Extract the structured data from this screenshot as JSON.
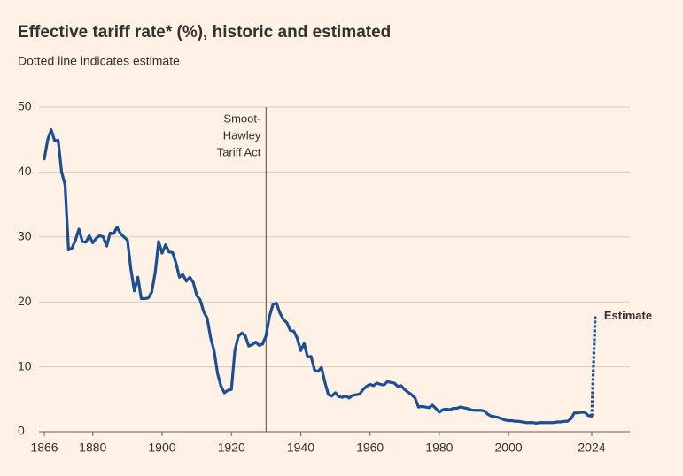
{
  "chart_data": {
    "type": "line",
    "title": "Effective tariff rate* (%), historic and estimated",
    "subtitle": "Dotted line indicates estimate",
    "xlim": [
      1866,
      2035
    ],
    "xticks": [
      1866,
      1880,
      1900,
      1920,
      1940,
      1960,
      1980,
      2000,
      2024
    ],
    "ylim": [
      0,
      50
    ],
    "yticks": [
      0,
      10,
      20,
      30,
      40,
      50
    ],
    "grid": true,
    "annotations": [
      {
        "x": 1930,
        "text": [
          "Smoot-",
          "Hawley",
          "Tariff Act"
        ]
      }
    ],
    "series": [
      {
        "color": "#1c4f8f",
        "style": "solid",
        "x": [
          1866,
          1867,
          1868,
          1869,
          1870,
          1871,
          1872,
          1873,
          1874,
          1875,
          1876,
          1877,
          1878,
          1879,
          1880,
          1881,
          1882,
          1883,
          1884,
          1885,
          1886,
          1887,
          1888,
          1889,
          1890,
          1891,
          1892,
          1893,
          1894,
          1895,
          1896,
          1897,
          1898,
          1899,
          1900,
          1901,
          1902,
          1903,
          1904,
          1905,
          1906,
          1907,
          1908,
          1909,
          1910,
          1911,
          1912,
          1913,
          1914,
          1915,
          1916,
          1917,
          1918,
          1919,
          1920,
          1921,
          1922,
          1923,
          1924,
          1925,
          1926,
          1927,
          1928,
          1929,
          1930,
          1931,
          1932,
          1933,
          1934,
          1935,
          1936,
          1937,
          1938,
          1939,
          1940,
          1941,
          1942,
          1943,
          1944,
          1945,
          1946,
          1947,
          1948,
          1949,
          1950,
          1951,
          1952,
          1953,
          1954,
          1955,
          1956,
          1957,
          1958,
          1959,
          1960,
          1961,
          1962,
          1963,
          1964,
          1965,
          1966,
          1967,
          1968,
          1969,
          1970,
          1971,
          1972,
          1973,
          1974,
          1975,
          1976,
          1977,
          1978,
          1979,
          1980,
          1981,
          1982,
          1983,
          1984,
          1985,
          1986,
          1987,
          1988,
          1989,
          1990,
          1991,
          1992,
          1993,
          1994,
          1995,
          1996,
          1997,
          1998,
          1999,
          2000,
          2001,
          2002,
          2003,
          2004,
          2005,
          2006,
          2007,
          2008,
          2009,
          2010,
          2011,
          2012,
          2013,
          2014,
          2015,
          2016,
          2017,
          2018,
          2019,
          2020,
          2021,
          2022,
          2023,
          2024
        ],
        "values": [
          42,
          45,
          46.5,
          44.8,
          44.9,
          40,
          38,
          28,
          28.3,
          29.5,
          31.2,
          29.3,
          29.2,
          30.2,
          29.1,
          29.8,
          30.2,
          30,
          28.6,
          30.6,
          30.5,
          31.5,
          30.5,
          30,
          29.5,
          25,
          21.7,
          23.8,
          20.5,
          20.5,
          20.6,
          21.5,
          24.5,
          29.3,
          27.5,
          28.8,
          27.7,
          27.6,
          26,
          23.8,
          24.2,
          23.2,
          23.8,
          23,
          21,
          20.3,
          18.5,
          17.5,
          14.5,
          12.5,
          9,
          7,
          6,
          6.4,
          6.5,
          12.5,
          14.7,
          15.2,
          14.8,
          13.2,
          13.4,
          13.8,
          13.3,
          13.5,
          14.8,
          17.8,
          19.6,
          19.8,
          18.3,
          17.3,
          16.8,
          15.6,
          15.5,
          14.4,
          12.5,
          13.6,
          11.5,
          11.6,
          9.5,
          9.3,
          9.9,
          7.6,
          5.7,
          5.5,
          6,
          5.4,
          5.3,
          5.5,
          5.2,
          5.6,
          5.7,
          5.8,
          6.5,
          7,
          7.3,
          7.1,
          7.5,
          7.3,
          7.2,
          7.7,
          7.6,
          7.5,
          7,
          7.1,
          6.5,
          6.1,
          5.7,
          5.2,
          3.8,
          3.9,
          3.8,
          3.7,
          4.1,
          3.6,
          3,
          3.4,
          3.5,
          3.4,
          3.6,
          3.6,
          3.8,
          3.7,
          3.6,
          3.4,
          3.3,
          3.3,
          3.3,
          3.2,
          2.7,
          2.4,
          2.3,
          2.2,
          2,
          1.8,
          1.7,
          1.7,
          1.6,
          1.6,
          1.5,
          1.4,
          1.4,
          1.4,
          1.3,
          1.4,
          1.4,
          1.4,
          1.4,
          1.4,
          1.5,
          1.5,
          1.6,
          1.6,
          2,
          2.9,
          2.9,
          3,
          3,
          2.5,
          2.4
        ]
      },
      {
        "name": "Estimate",
        "color": "#1c4f8f",
        "style": "dotted",
        "x": [
          2024,
          2025
        ],
        "values": [
          2.4,
          17.8
        ]
      }
    ]
  }
}
